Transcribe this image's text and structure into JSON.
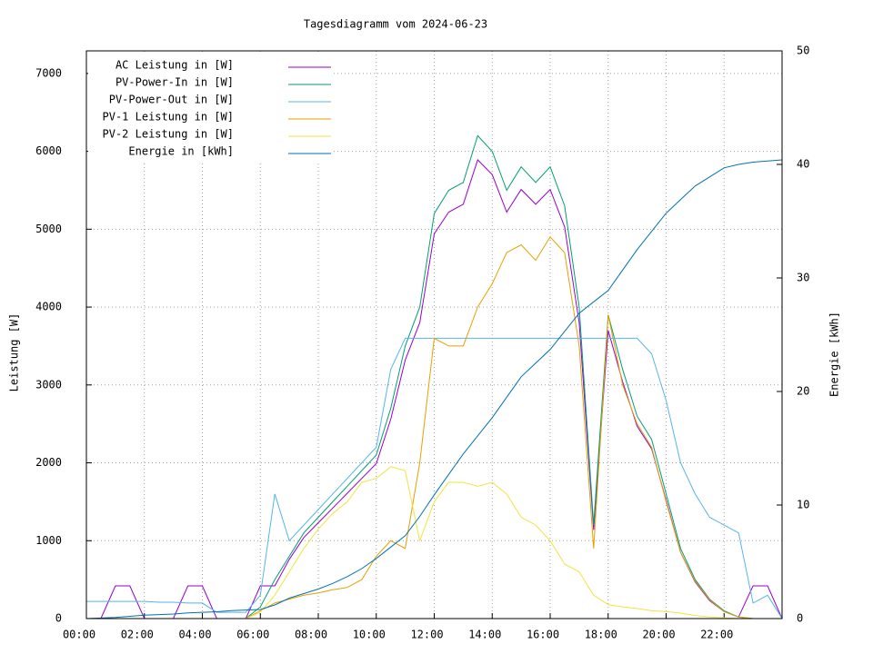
{
  "chart_data": {
    "type": "line",
    "title": "Tagesdiagramm vom 2024-06-23",
    "ylabel": "Leistung [W]",
    "y2label": "Energie [kWh]",
    "legend": "top-left",
    "grid": true,
    "x": [
      0,
      0.5,
      1,
      1.5,
      2,
      2.5,
      3,
      3.5,
      4,
      4.5,
      5,
      5.5,
      6,
      6.5,
      7,
      7.5,
      8,
      8.5,
      9,
      9.5,
      10,
      10.5,
      11,
      11.5,
      12,
      12.5,
      13,
      13.5,
      14,
      14.5,
      15,
      15.5,
      16,
      16.5,
      17,
      17.5,
      18,
      18.5,
      19,
      19.5,
      20,
      20.5,
      21,
      21.5,
      22,
      22.5,
      23,
      23.5,
      24
    ],
    "xlim": [
      0,
      24
    ],
    "xticks": [
      {
        "value": 0,
        "label": "00:00"
      },
      {
        "value": 2,
        "label": "02:00"
      },
      {
        "value": 4,
        "label": "04:00"
      },
      {
        "value": 6,
        "label": "06:00"
      },
      {
        "value": 8,
        "label": "08:00"
      },
      {
        "value": 10,
        "label": "10:00"
      },
      {
        "value": 12,
        "label": "12:00"
      },
      {
        "value": 14,
        "label": "14:00"
      },
      {
        "value": 16,
        "label": "16:00"
      },
      {
        "value": 18,
        "label": "18:00"
      },
      {
        "value": 20,
        "label": "20:00"
      },
      {
        "value": 22,
        "label": "22:00"
      }
    ],
    "ylim": [
      0,
      7290
    ],
    "yticks": [
      0,
      1000,
      2000,
      3000,
      4000,
      5000,
      6000,
      7000
    ],
    "y2lim": [
      0,
      50
    ],
    "y2ticks": [
      0,
      10,
      20,
      30,
      40,
      50
    ],
    "series": [
      {
        "name": "AC Leistung in [W]",
        "color": "#9400d3",
        "values": [
          0,
          0,
          420,
          420,
          0,
          0,
          0,
          420,
          420,
          0,
          0,
          0,
          420,
          420,
          760,
          1040,
          1230,
          1420,
          1610,
          1800,
          1990,
          2560,
          3320,
          3800,
          4940,
          5220,
          5320,
          5890,
          5700,
          5220,
          5510,
          5320,
          5510,
          5030,
          3800,
          1140,
          3700,
          3040,
          2470,
          2180,
          1520,
          850,
          470,
          230,
          90,
          20,
          420,
          420,
          0
        ]
      },
      {
        "name": "PV-Power-In in [W]",
        "color": "#009e73",
        "values": [
          0,
          0,
          0,
          0,
          0,
          0,
          0,
          0,
          0,
          0,
          0,
          0,
          150,
          500,
          800,
          1100,
          1300,
          1500,
          1700,
          1900,
          2100,
          2700,
          3500,
          4000,
          5200,
          5500,
          5600,
          6200,
          6000,
          5500,
          5800,
          5600,
          5800,
          5300,
          4000,
          1200,
          3900,
          3200,
          2600,
          2300,
          1600,
          900,
          500,
          250,
          100,
          20,
          0,
          0,
          0
        ]
      },
      {
        "name": "PV-Power-Out in [W]",
        "color": "#56b4e9",
        "values": [
          220,
          220,
          220,
          220,
          220,
          210,
          210,
          200,
          200,
          80,
          80,
          80,
          300,
          1600,
          1000,
          1200,
          1400,
          1600,
          1800,
          2000,
          2200,
          3200,
          3600,
          3600,
          3600,
          3600,
          3600,
          3600,
          3600,
          3600,
          3600,
          3600,
          3600,
          3600,
          3600,
          3600,
          3600,
          3600,
          3600,
          3400,
          2800,
          2000,
          1600,
          1300,
          1200,
          1100,
          200,
          300,
          0
        ]
      },
      {
        "name": "PV-1 Leistung in [W]",
        "color": "#e69f00",
        "values": [
          0,
          0,
          0,
          0,
          0,
          0,
          0,
          0,
          0,
          0,
          0,
          0,
          100,
          200,
          250,
          300,
          330,
          370,
          400,
          500,
          800,
          1000,
          900,
          2000,
          3600,
          3500,
          3500,
          4000,
          4300,
          4700,
          4800,
          4600,
          4900,
          4700,
          3500,
          900,
          3900,
          3000,
          2500,
          2200,
          1500,
          850,
          480,
          240,
          90,
          20,
          0,
          0,
          0
        ]
      },
      {
        "name": "PV-2 Leistung in [W]",
        "color": "#f0e442",
        "values": [
          0,
          0,
          0,
          0,
          0,
          0,
          0,
          0,
          0,
          0,
          0,
          0,
          80,
          300,
          600,
          900,
          1150,
          1350,
          1500,
          1750,
          1800,
          1950,
          1900,
          1000,
          1500,
          1750,
          1750,
          1700,
          1750,
          1600,
          1300,
          1200,
          1000,
          700,
          600,
          300,
          180,
          150,
          130,
          100,
          90,
          70,
          40,
          20,
          10,
          0,
          0,
          0,
          0
        ]
      },
      {
        "name": "Energie in [kWh]",
        "color": "#0072b2",
        "axis": "y2",
        "values": [
          0,
          0.05,
          0.1,
          0.2,
          0.3,
          0.35,
          0.4,
          0.5,
          0.55,
          0.6,
          0.7,
          0.75,
          0.8,
          1.2,
          1.8,
          2.2,
          2.6,
          3.1,
          3.7,
          4.4,
          5.3,
          6.3,
          7.3,
          9.0,
          10.9,
          12.7,
          14.5,
          16.1,
          17.7,
          19.5,
          21.3,
          22.5,
          23.7,
          25.3,
          26.9,
          27.9,
          28.9,
          30.7,
          32.5,
          34.1,
          35.7,
          36.9,
          38.1,
          38.9,
          39.7,
          40.0,
          40.2,
          40.3,
          40.4
        ]
      }
    ]
  }
}
